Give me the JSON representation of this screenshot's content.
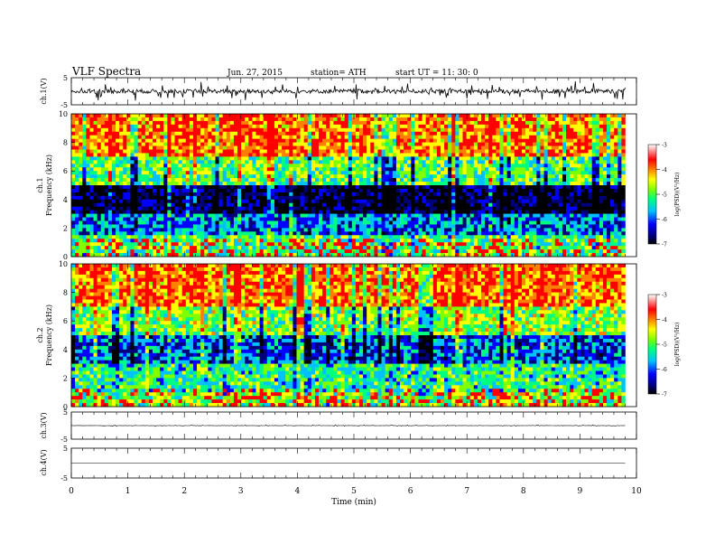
{
  "header": {
    "title": "VLF  Spectra",
    "date": "Jun. 27, 2015",
    "station": "station= ATH",
    "start": "start  UT  =   11: 30: 0"
  },
  "panels": {
    "ch1": {
      "label": "ch.1(V)",
      "ticks": [
        "5",
        "-5"
      ]
    },
    "spec1": {
      "label_ch": "ch.1",
      "label_freq": "Frequency  (kHz)",
      "ticks": [
        "10",
        "8",
        "6",
        "4",
        "2",
        "0"
      ]
    },
    "spec2": {
      "label_ch": "ch.2",
      "label_freq": "Frequency  (kHz)",
      "ticks": [
        "10",
        "8",
        "6",
        "4",
        "2",
        "0"
      ]
    },
    "ch3": {
      "label": "ch.3(V)",
      "ticks": [
        "5",
        "-5"
      ]
    },
    "ch4": {
      "label": "ch.4(V)",
      "ticks": [
        "5",
        "-5"
      ]
    }
  },
  "colorbar": {
    "label": "log(PSD)(V²/Hz)",
    "ticks": [
      "-3",
      "-4",
      "-5",
      "-6",
      "-7"
    ],
    "stops": [
      "#000000",
      "#00007a",
      "#0000ff",
      "#00c0ff",
      "#00ff80",
      "#80ff00",
      "#ffff00",
      "#ff8000",
      "#ff0000",
      "#ffffff"
    ]
  },
  "xaxis": {
    "label": "Time  (min)",
    "ticks": [
      "0",
      "1",
      "2",
      "3",
      "4",
      "5",
      "6",
      "7",
      "8",
      "9",
      "10"
    ]
  },
  "chart_data": [
    {
      "type": "line",
      "title": "VLF  Spectra",
      "ylabel": "ch.1(V)",
      "xlabel": "Time  (min)",
      "xlim": [
        0,
        10
      ],
      "ylim": [
        -5,
        5
      ],
      "x_end": 9.8,
      "series": [
        {
          "values_summary": {
            "baseline": 0,
            "typical_spike": 2.5
          }
        }
      ]
    },
    {
      "type": "heatmap",
      "ylabel": "ch.1  Frequency  (kHz)",
      "xlabel": "Time  (min)",
      "xlim": [
        0,
        10
      ],
      "ylim": [
        0,
        10
      ],
      "zlabel": "log(PSD)(V²/Hz)",
      "zlim": [
        -7,
        -3
      ],
      "bands": [
        {
          "freq": [
            7,
            10
          ],
          "level": -3.8
        },
        {
          "freq": [
            5,
            7
          ],
          "level": -5.0
        },
        {
          "freq": [
            3,
            5
          ],
          "level": -6.8
        },
        {
          "freq": [
            1.5,
            3
          ],
          "level": -5.8
        },
        {
          "freq": [
            0,
            1.5
          ],
          "level": -5.0
        }
      ]
    },
    {
      "type": "heatmap",
      "ylabel": "ch.2  Frequency  (kHz)",
      "xlabel": "Time  (min)",
      "xlim": [
        0,
        10
      ],
      "ylim": [
        0,
        10
      ],
      "zlabel": "log(PSD)(V²/Hz)",
      "zlim": [
        -7,
        -3
      ],
      "bands": [
        {
          "freq": [
            7,
            10
          ],
          "level": -3.8
        },
        {
          "freq": [
            5,
            7
          ],
          "level": -4.8
        },
        {
          "freq": [
            3,
            5
          ],
          "level": -6.0
        },
        {
          "freq": [
            1,
            3
          ],
          "level": -5.2
        },
        {
          "freq": [
            0,
            1
          ],
          "level": -4.8
        }
      ]
    },
    {
      "type": "line",
      "ylabel": "ch.3(V)",
      "xlim": [
        0,
        10
      ],
      "ylim": [
        -5,
        5
      ],
      "x_end": 9.8,
      "series": [
        {
          "values_summary": {
            "baseline": 0,
            "typical_spike": 0.2
          }
        }
      ]
    },
    {
      "type": "line",
      "ylabel": "ch.4(V)",
      "xlim": [
        0,
        10
      ],
      "ylim": [
        -5,
        5
      ],
      "x_end": 9.8,
      "series": [
        {
          "values_summary": {
            "baseline": 0,
            "typical_spike": 0
          }
        }
      ]
    }
  ]
}
